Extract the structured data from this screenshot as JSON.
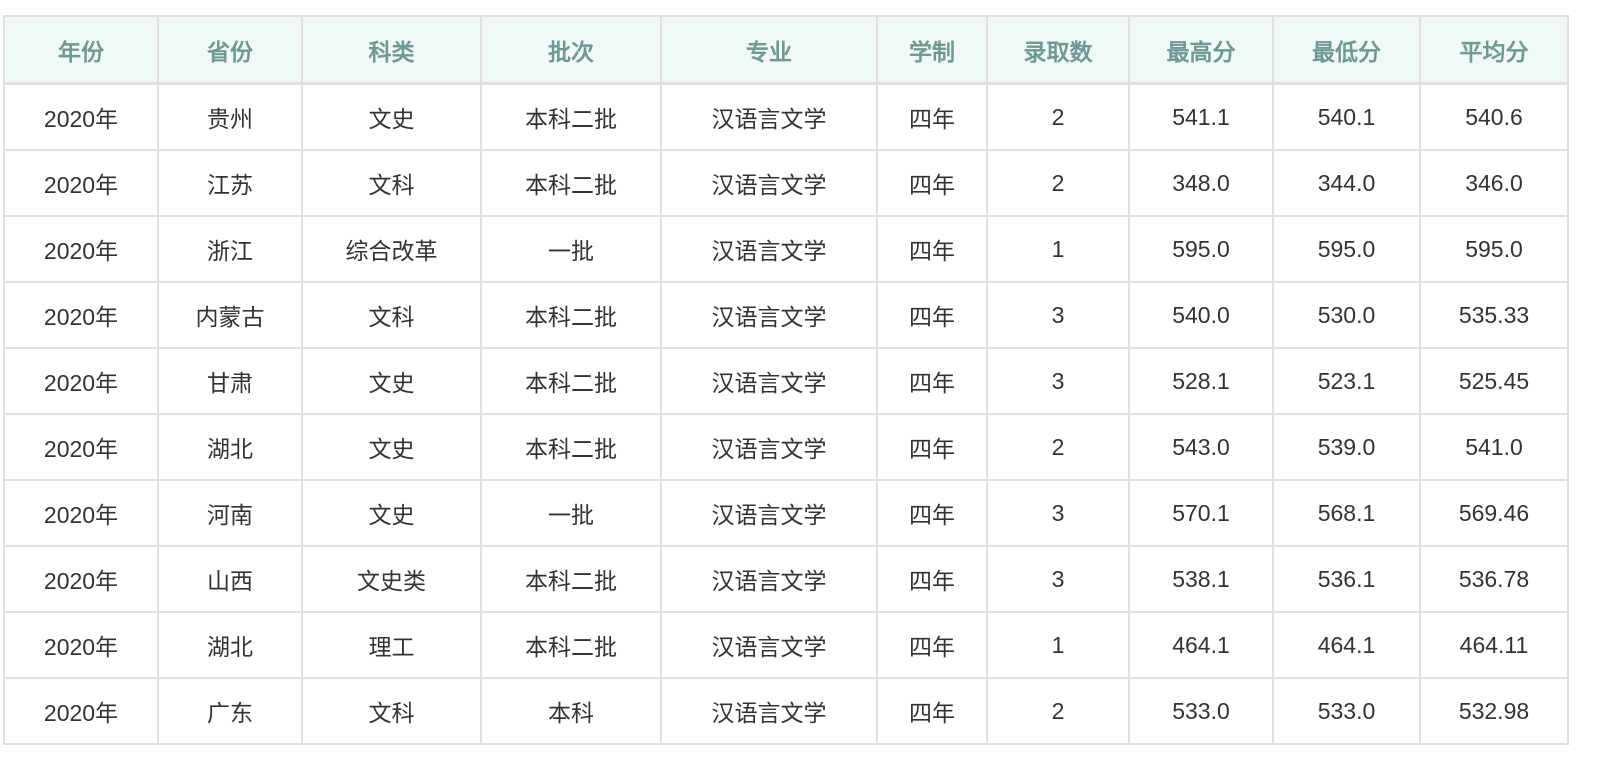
{
  "columns": [
    "年份",
    "省份",
    "科类",
    "批次",
    "专业",
    "学制",
    "录取数",
    "最高分",
    "最低分",
    "平均分"
  ],
  "rows": [
    [
      "2020年",
      "贵州",
      "文史",
      "本科二批",
      "汉语言文学",
      "四年",
      "2",
      "541.1",
      "540.1",
      "540.6"
    ],
    [
      "2020年",
      "江苏",
      "文科",
      "本科二批",
      "汉语言文学",
      "四年",
      "2",
      "348.0",
      "344.0",
      "346.0"
    ],
    [
      "2020年",
      "浙江",
      "综合改革",
      "一批",
      "汉语言文学",
      "四年",
      "1",
      "595.0",
      "595.0",
      "595.0"
    ],
    [
      "2020年",
      "内蒙古",
      "文科",
      "本科二批",
      "汉语言文学",
      "四年",
      "3",
      "540.0",
      "530.0",
      "535.33"
    ],
    [
      "2020年",
      "甘肃",
      "文史",
      "本科二批",
      "汉语言文学",
      "四年",
      "3",
      "528.1",
      "523.1",
      "525.45"
    ],
    [
      "2020年",
      "湖北",
      "文史",
      "本科二批",
      "汉语言文学",
      "四年",
      "2",
      "543.0",
      "539.0",
      "541.0"
    ],
    [
      "2020年",
      "河南",
      "文史",
      "一批",
      "汉语言文学",
      "四年",
      "3",
      "570.1",
      "568.1",
      "569.46"
    ],
    [
      "2020年",
      "山西",
      "文史类",
      "本科二批",
      "汉语言文学",
      "四年",
      "3",
      "538.1",
      "536.1",
      "536.78"
    ],
    [
      "2020年",
      "湖北",
      "理工",
      "本科二批",
      "汉语言文学",
      "四年",
      "1",
      "464.1",
      "464.1",
      "464.11"
    ],
    [
      "2020年",
      "广东",
      "文科",
      "本科",
      "汉语言文学",
      "四年",
      "2",
      "533.0",
      "533.0",
      "532.98"
    ]
  ]
}
